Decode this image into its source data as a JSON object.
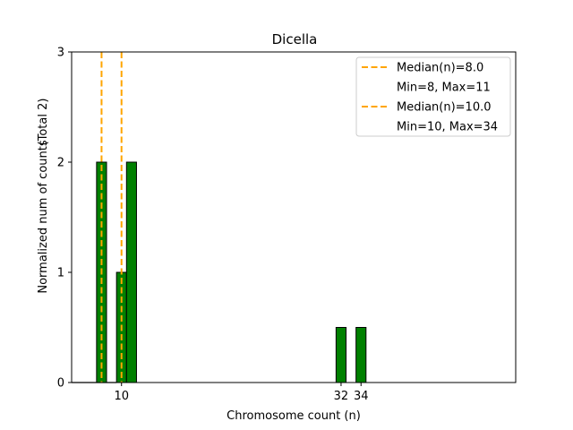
{
  "chart_data": {
    "type": "bar",
    "title": "Dicella",
    "xlabel": "Chromosome count (n)",
    "ylabel": "Normalized num of counts",
    "ylabel_note": "(Total 2)",
    "xlim": [
      5,
      49.5
    ],
    "ylim": [
      0,
      3
    ],
    "x_ticks": [
      10,
      32,
      34
    ],
    "y_ticks": [
      0,
      1,
      2,
      3
    ],
    "bar_width": 1,
    "bar_color": "#008000",
    "bars": [
      {
        "x": 8,
        "value": 2
      },
      {
        "x": 10,
        "value": 1
      },
      {
        "x": 11,
        "value": 2
      },
      {
        "x": 32,
        "value": 0.5
      },
      {
        "x": 34,
        "value": 0.5
      }
    ],
    "baseline_segment": [
      5,
      9.5
    ],
    "median_lines": [
      {
        "x": 8.0,
        "color": "#ffa500"
      },
      {
        "x": 10.0,
        "color": "#ffa500"
      }
    ],
    "legend": {
      "position": "top-right",
      "entries": [
        {
          "label": "Median(n)=8.0",
          "detail": "Min=8, Max=11",
          "color": "#ffa500"
        },
        {
          "label": "Median(n)=10.0",
          "detail": "Min=10, Max=34",
          "color": "#ffa500"
        }
      ]
    }
  }
}
